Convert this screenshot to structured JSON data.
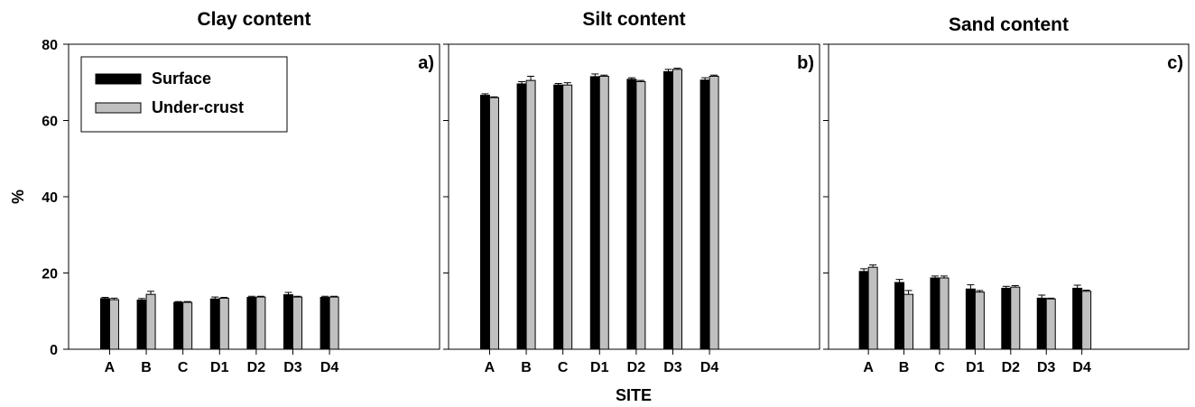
{
  "chart_data": {
    "type": "bar",
    "xlabel": "SITE",
    "ylabel": "%",
    "ylim": [
      0,
      80
    ],
    "yticks": [
      0,
      20,
      40,
      60,
      80
    ],
    "categories": [
      "A",
      "B",
      "C",
      "D1",
      "D2",
      "D3",
      "D4"
    ],
    "legend": {
      "position": "top-left",
      "entries": [
        {
          "name": "Surface",
          "color": "#000000"
        },
        {
          "name": "Under-crust",
          "color": "#c0c0c0"
        }
      ]
    },
    "panels": [
      {
        "title": "Clay content",
        "label": "a)",
        "series": [
          {
            "name": "Surface",
            "values": [
              13.3,
              12.9,
              12.3,
              13.2,
              13.6,
              14.3,
              13.6
            ],
            "errors": [
              0.3,
              0.4,
              0.2,
              0.5,
              0.3,
              0.6,
              0.3
            ]
          },
          {
            "name": "Under-crust",
            "values": [
              13.0,
              14.4,
              12.3,
              13.4,
              13.7,
              13.7,
              13.7
            ],
            "errors": [
              0.4,
              0.8,
              0.2,
              0.2,
              0.2,
              0.2,
              0.2
            ]
          }
        ]
      },
      {
        "title": "Silt content",
        "label": "b)",
        "series": [
          {
            "name": "Surface",
            "values": [
              66.6,
              69.6,
              69.3,
              71.5,
              70.8,
              72.8,
              70.6
            ],
            "errors": [
              0.4,
              0.6,
              0.4,
              0.7,
              0.4,
              0.6,
              0.6
            ]
          },
          {
            "name": "Under-crust",
            "values": [
              66.0,
              70.5,
              69.3,
              71.6,
              70.2,
              73.4,
              71.6
            ],
            "errors": [
              0.2,
              1.1,
              0.6,
              0.3,
              0.3,
              0.3,
              0.3
            ]
          }
        ]
      },
      {
        "title": "Sand content",
        "label": "c)",
        "series": [
          {
            "name": "Surface",
            "values": [
              20.4,
              17.5,
              18.7,
              15.8,
              16.0,
              13.4,
              16.0
            ],
            "errors": [
              0.7,
              0.8,
              0.5,
              1.1,
              0.5,
              0.8,
              0.8
            ]
          },
          {
            "name": "Under-crust",
            "values": [
              21.5,
              14.4,
              18.7,
              15.0,
              16.3,
              13.2,
              15.2
            ],
            "errors": [
              0.6,
              1.0,
              0.5,
              0.4,
              0.4,
              0.2,
              0.3
            ]
          }
        ]
      }
    ]
  }
}
